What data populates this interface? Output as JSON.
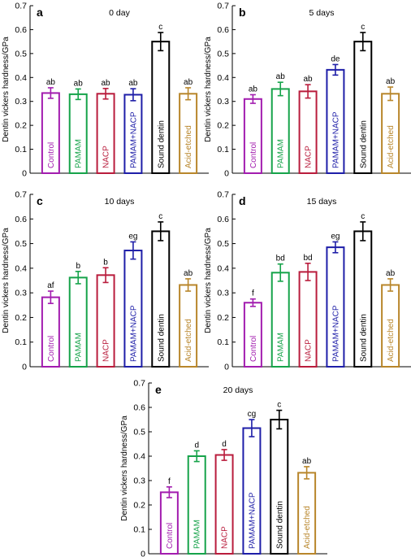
{
  "chart_data": [
    {
      "type": "bar",
      "panel": "a",
      "title": "0 day",
      "ylabel": "Dentin vickers hardness/GPa",
      "ylim": [
        0,
        0.7
      ],
      "yticks": [
        "0",
        "0.1",
        "0.2",
        "0.3",
        "0.4",
        "0.5",
        "0.6",
        "0.7"
      ],
      "categories": [
        "Control",
        "PAMAM",
        "NACP",
        "PAMAM+NACP",
        "Sound dentin",
        "Acid-etched"
      ],
      "colors": [
        "#a21caf",
        "#16a34a",
        "#b91c3c",
        "#1e1ea8",
        "#000000",
        "#b8862b"
      ],
      "values": [
        0.335,
        0.33,
        0.332,
        0.328,
        0.55,
        0.332
      ],
      "errors": [
        0.022,
        0.022,
        0.022,
        0.025,
        0.038,
        0.025
      ],
      "labels": [
        "ab",
        "ab",
        "ab",
        "ab",
        "c",
        "ab"
      ]
    },
    {
      "type": "bar",
      "panel": "b",
      "title": "5 days",
      "ylabel": "Dentin vickers hardness/GPa",
      "ylim": [
        0,
        0.7
      ],
      "yticks": [
        "0",
        "0.1",
        "0.2",
        "0.3",
        "0.4",
        "0.5",
        "0.6",
        "0.7"
      ],
      "categories": [
        "Control",
        "PAMAM",
        "NACP",
        "PAMAM+NACP",
        "Sound dentin",
        "Acid-etched"
      ],
      "colors": [
        "#a21caf",
        "#16a34a",
        "#b91c3c",
        "#1e1ea8",
        "#000000",
        "#b8862b"
      ],
      "values": [
        0.31,
        0.352,
        0.342,
        0.432,
        0.55,
        0.332
      ],
      "errors": [
        0.018,
        0.028,
        0.028,
        0.022,
        0.038,
        0.028
      ],
      "labels": [
        "ab",
        "ab",
        "ab",
        "de",
        "c",
        "ab"
      ]
    },
    {
      "type": "bar",
      "panel": "c",
      "title": "10 days",
      "ylabel": "Dentin vickers hardness/GPa",
      "ylim": [
        0,
        0.7
      ],
      "yticks": [
        "0",
        "0.1",
        "0.2",
        "0.3",
        "0.4",
        "0.5",
        "0.6",
        "0.7"
      ],
      "categories": [
        "Control",
        "PAMAM",
        "NACP",
        "PAMAM+NACP",
        "Sound dentin",
        "Acid-etched"
      ],
      "colors": [
        "#a21caf",
        "#16a34a",
        "#b91c3c",
        "#1e1ea8",
        "#000000",
        "#b8862b"
      ],
      "values": [
        0.282,
        0.362,
        0.372,
        0.472,
        0.55,
        0.332
      ],
      "errors": [
        0.025,
        0.025,
        0.03,
        0.035,
        0.038,
        0.025
      ],
      "labels": [
        "af",
        "b",
        "b",
        "eg",
        "c",
        "ab"
      ]
    },
    {
      "type": "bar",
      "panel": "d",
      "title": "15 days",
      "ylabel": "Dentin vickers hardness/GPa",
      "ylim": [
        0,
        0.7
      ],
      "yticks": [
        "0",
        "0.1",
        "0.2",
        "0.3",
        "0.4",
        "0.5",
        "0.6",
        "0.7"
      ],
      "categories": [
        "Control",
        "PAMAM",
        "NACP",
        "PAMAM+NACP",
        "Sound dentin",
        "Acid-etched"
      ],
      "colors": [
        "#a21caf",
        "#16a34a",
        "#b91c3c",
        "#1e1ea8",
        "#000000",
        "#b8862b"
      ],
      "values": [
        0.26,
        0.382,
        0.385,
        0.485,
        0.55,
        0.332
      ],
      "errors": [
        0.015,
        0.035,
        0.035,
        0.022,
        0.038,
        0.025
      ],
      "labels": [
        "f",
        "bd",
        "bd",
        "eg",
        "c",
        "ab"
      ]
    },
    {
      "type": "bar",
      "panel": "e",
      "title": "20 days",
      "ylabel": "Dentin vickers hardness/GPa",
      "ylim": [
        0,
        0.7
      ],
      "yticks": [
        "0",
        "0.1",
        "0.2",
        "0.3",
        "0.4",
        "0.5",
        "0.6",
        "0.7"
      ],
      "categories": [
        "Control",
        "PAMAM",
        "NACP",
        "PAMAM+NACP",
        "Sound dentin",
        "Acid-etched"
      ],
      "colors": [
        "#a21caf",
        "#16a34a",
        "#b91c3c",
        "#1e1ea8",
        "#000000",
        "#b8862b"
      ],
      "values": [
        0.252,
        0.4,
        0.405,
        0.515,
        0.55,
        0.332
      ],
      "errors": [
        0.022,
        0.022,
        0.022,
        0.035,
        0.038,
        0.025
      ],
      "labels": [
        "f",
        "d",
        "d",
        "cg",
        "c",
        "ab"
      ]
    }
  ]
}
